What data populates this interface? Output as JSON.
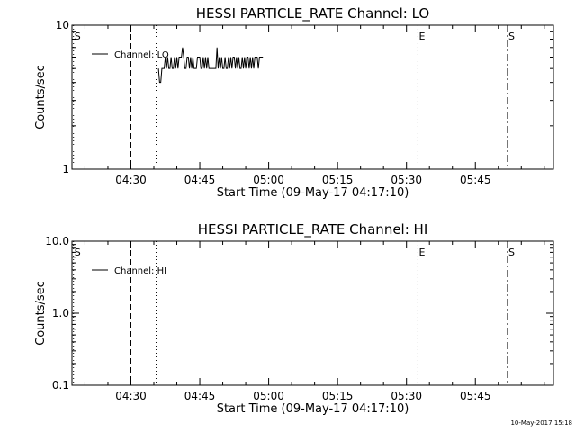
{
  "chart_data": [
    {
      "type": "line",
      "title": "HESSI PARTICLE_RATE Channel: LO",
      "xlabel": "Start Time (09-May-17 04:17:10)",
      "ylabel": "Counts/sec",
      "yscale": "log",
      "ylim": [
        1,
        10
      ],
      "ytick_values": [
        1,
        10
      ],
      "ytick_labels": [
        "1",
        "10"
      ],
      "xlim": [
        "04:17:10",
        "06:02:00"
      ],
      "xtick_values": [
        "04:30",
        "04:45",
        "05:00",
        "05:15",
        "05:30",
        "05:45"
      ],
      "xtick_labels": [
        "04:30",
        "04:45",
        "05:00",
        "05:15",
        "05:30",
        "05:45"
      ],
      "legend": {
        "placement": "top-left",
        "entries": [
          "Channel: LO"
        ]
      },
      "series": [
        {
          "name": "Channel: LO",
          "x": [
            "04:36:00",
            "04:36:15",
            "04:36:30",
            "04:36:45",
            "04:37:00",
            "04:37:15",
            "04:37:30",
            "04:37:45",
            "04:38:00",
            "04:38:15",
            "04:38:30",
            "04:38:45",
            "04:39:00",
            "04:39:15",
            "04:39:30",
            "04:39:45",
            "04:40:00",
            "04:40:15",
            "04:40:30",
            "04:40:45",
            "04:41:00",
            "04:41:15",
            "04:41:30",
            "04:41:45",
            "04:42:00",
            "04:42:15",
            "04:42:30",
            "04:42:45",
            "04:43:00",
            "04:43:15",
            "04:43:30",
            "04:43:45",
            "04:44:00",
            "04:44:15",
            "04:44:30",
            "04:44:45",
            "04:45:00",
            "04:45:15",
            "04:45:30",
            "04:45:45",
            "04:46:00",
            "04:46:15",
            "04:46:30",
            "04:46:45",
            "04:47:00",
            "04:47:15",
            "04:47:30",
            "04:47:45",
            "04:48:00",
            "04:48:15",
            "04:48:30",
            "04:48:45",
            "04:49:00",
            "04:49:15",
            "04:49:30",
            "04:49:45",
            "04:50:00",
            "04:50:15",
            "04:50:30",
            "04:50:45",
            "04:51:00",
            "04:51:15",
            "04:51:30",
            "04:51:45",
            "04:52:00",
            "04:52:15",
            "04:52:30",
            "04:52:45",
            "04:53:00",
            "04:53:15",
            "04:53:30",
            "04:53:45",
            "04:54:00",
            "04:54:15",
            "04:54:30",
            "04:54:45",
            "04:55:00",
            "04:55:15",
            "04:55:30",
            "04:55:45",
            "04:56:00",
            "04:56:15",
            "04:56:30",
            "04:56:45",
            "04:57:00",
            "04:57:15",
            "04:57:30",
            "04:57:45",
            "04:58:00",
            "04:58:15",
            "04:58:30",
            "04:58:45"
          ],
          "y": [
            5,
            4,
            4,
            5,
            5,
            5,
            6,
            5,
            6,
            5,
            5,
            6,
            5,
            5,
            6,
            5,
            6,
            5,
            6,
            6,
            6,
            7,
            6,
            5,
            5,
            6,
            6,
            5,
            6,
            5,
            6,
            5,
            5,
            5,
            6,
            6,
            6,
            5,
            5,
            6,
            5,
            6,
            5,
            6,
            5,
            5,
            5,
            5,
            5,
            5,
            5,
            7,
            5,
            6,
            5,
            6,
            5,
            5,
            6,
            5,
            5,
            6,
            5,
            6,
            5,
            6,
            6,
            5,
            6,
            5,
            6,
            5,
            5,
            6,
            5,
            6,
            5,
            6,
            6,
            5,
            6,
            5,
            6,
            5,
            6,
            6,
            6,
            5,
            6,
            6,
            6,
            6
          ]
        }
      ],
      "markers": [
        {
          "label": "S",
          "x": "04:17:30",
          "style": "dotted"
        },
        {
          "label": "",
          "x": "04:30:00",
          "style": "dashed"
        },
        {
          "label": "",
          "x": "04:35:30",
          "style": "dotted"
        },
        {
          "label": "E",
          "x": "05:32:30",
          "style": "dotted"
        },
        {
          "label": "S",
          "x": "05:52:00",
          "style": "dashdot"
        }
      ]
    },
    {
      "type": "line",
      "title": "HESSI PARTICLE_RATE Channel: HI",
      "xlabel": "Start Time (09-May-17 04:17:10)",
      "ylabel": "Counts/sec",
      "yscale": "log",
      "ylim": [
        0.1,
        10
      ],
      "ytick_values": [
        0.1,
        1,
        10
      ],
      "ytick_labels": [
        "0.1",
        "1.0",
        "10.0"
      ],
      "xlim": [
        "04:17:10",
        "06:02:00"
      ],
      "xtick_values": [
        "04:30",
        "04:45",
        "05:00",
        "05:15",
        "05:30",
        "05:45"
      ],
      "xtick_labels": [
        "04:30",
        "04:45",
        "05:00",
        "05:15",
        "05:30",
        "05:45"
      ],
      "legend": {
        "placement": "top-left",
        "entries": [
          "Channel: HI"
        ]
      },
      "series": [
        {
          "name": "Channel: HI",
          "x": [],
          "y": []
        }
      ],
      "markers": [
        {
          "label": "S",
          "x": "04:17:30",
          "style": "dotted"
        },
        {
          "label": "",
          "x": "04:30:00",
          "style": "dashed"
        },
        {
          "label": "",
          "x": "04:35:30",
          "style": "dotted"
        },
        {
          "label": "E",
          "x": "05:32:30",
          "style": "dotted"
        },
        {
          "label": "S",
          "x": "05:52:00",
          "style": "dashdot"
        }
      ]
    }
  ],
  "footer": {
    "timestamp": "10-May-2017 15:18"
  }
}
